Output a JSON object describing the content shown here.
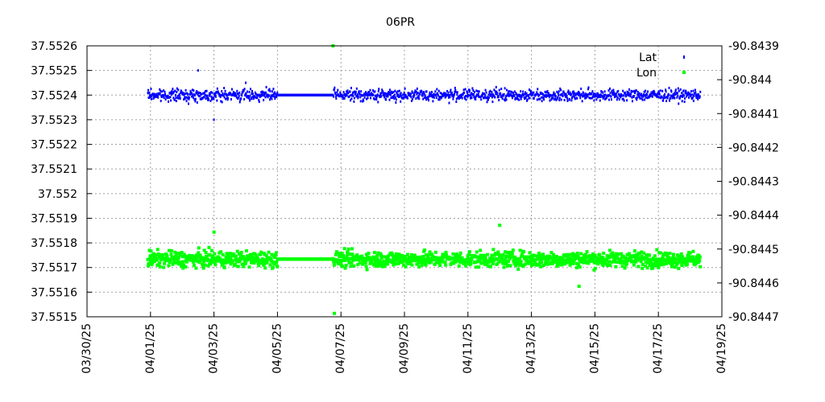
{
  "chart_data": {
    "type": "scatter",
    "title": "06PR",
    "x_axis": {
      "type": "date",
      "range": [
        "2025-03-30",
        "2025-04-19"
      ],
      "tick_values": [
        "2025-03-30",
        "2025-04-01",
        "2025-04-03",
        "2025-04-05",
        "2025-04-07",
        "2025-04-09",
        "2025-04-11",
        "2025-04-13",
        "2025-04-15",
        "2025-04-17",
        "2025-04-19"
      ],
      "tick_labels": [
        "03/30/25",
        "04/01/25",
        "04/03/25",
        "04/05/25",
        "04/07/25",
        "04/09/25",
        "04/11/25",
        "04/13/25",
        "04/15/25",
        "04/17/25",
        "04/19/25"
      ]
    },
    "y_axis_left": {
      "range": [
        37.5515,
        37.5526
      ],
      "tick_values": [
        37.5515,
        37.5516,
        37.5517,
        37.5518,
        37.5519,
        37.552,
        37.5521,
        37.5522,
        37.5523,
        37.5524,
        37.5525,
        37.5526
      ],
      "tick_labels": [
        "37.5515",
        "37.5516",
        "37.5517",
        "37.5518",
        "37.5519",
        "37.552",
        "37.5521",
        "37.5522",
        "37.5523",
        "37.5524",
        "37.5525",
        "37.5526"
      ]
    },
    "y_axis_right": {
      "range": [
        -90.8447,
        -90.8439
      ],
      "tick_values": [
        -90.8439,
        -90.844,
        -90.8441,
        -90.8442,
        -90.8443,
        -90.8444,
        -90.8445,
        -90.8446,
        -90.8447
      ],
      "tick_labels": [
        "-90.8439",
        "-90.844",
        "-90.8441",
        "-90.8442",
        "-90.8443",
        "-90.8444",
        "-90.8445",
        "-90.8446",
        "-90.8447"
      ]
    },
    "grid": true,
    "legend_position": "top-right",
    "series": [
      {
        "name": "Lat",
        "axis": "left",
        "color": "#0000ff",
        "x_range": [
          "2025-03-31T22:00",
          "2025-04-18T08:00"
        ],
        "gap": [
          "2025-04-05T00:00",
          "2025-04-06T18:00"
        ],
        "center": 37.5524,
        "spread": 4e-05,
        "values": [
          {
            "x": "2025-04-01T00:00",
            "y": 37.5524
          },
          {
            "x": "2025-04-02T12:00",
            "y": 37.5525
          },
          {
            "x": "2025-04-03T00:00",
            "y": 37.5523
          },
          {
            "x": "2025-04-04T00:00",
            "y": 37.55245
          },
          {
            "x": "2025-04-05T00:00",
            "y": 37.5524
          },
          {
            "x": "2025-04-06T00:00",
            "y": 37.5524
          },
          {
            "x": "2025-04-07T00:00",
            "y": 37.5524
          },
          {
            "x": "2025-04-09T00:00",
            "y": 37.5524
          },
          {
            "x": "2025-04-11T00:00",
            "y": 37.5524
          },
          {
            "x": "2025-04-13T00:00",
            "y": 37.5524
          },
          {
            "x": "2025-04-15T00:00",
            "y": 37.5524
          },
          {
            "x": "2025-04-17T00:00",
            "y": 37.55241
          },
          {
            "x": "2025-04-18T06:00",
            "y": 37.5524
          }
        ]
      },
      {
        "name": "Lon",
        "axis": "right",
        "color": "#00ff00",
        "x_range": [
          "2025-03-31T22:00",
          "2025-04-18T08:00"
        ],
        "gap": [
          "2025-04-05T00:00",
          "2025-04-06T18:00"
        ],
        "center": -90.84453,
        "spread": 4e-05,
        "values": [
          {
            "x": "2025-04-01T00:00",
            "y": -90.84452
          },
          {
            "x": "2025-04-03T00:00",
            "y": -90.84445
          },
          {
            "x": "2025-04-05T00:00",
            "y": -90.84453
          },
          {
            "x": "2025-04-06T00:00",
            "y": -90.84453
          },
          {
            "x": "2025-04-06T18:00",
            "y": -90.8439
          },
          {
            "x": "2025-04-06T19:00",
            "y": -90.84469
          },
          {
            "x": "2025-04-07T00:00",
            "y": -90.84454
          },
          {
            "x": "2025-04-09T00:00",
            "y": -90.84453
          },
          {
            "x": "2025-04-11T00:00",
            "y": -90.84453
          },
          {
            "x": "2025-04-12T00:00",
            "y": -90.84443
          },
          {
            "x": "2025-04-14T12:00",
            "y": -90.84461
          },
          {
            "x": "2025-04-15T00:00",
            "y": -90.84452
          },
          {
            "x": "2025-04-17T00:00",
            "y": -90.84454
          },
          {
            "x": "2025-04-18T06:00",
            "y": -90.84453
          }
        ]
      }
    ]
  }
}
